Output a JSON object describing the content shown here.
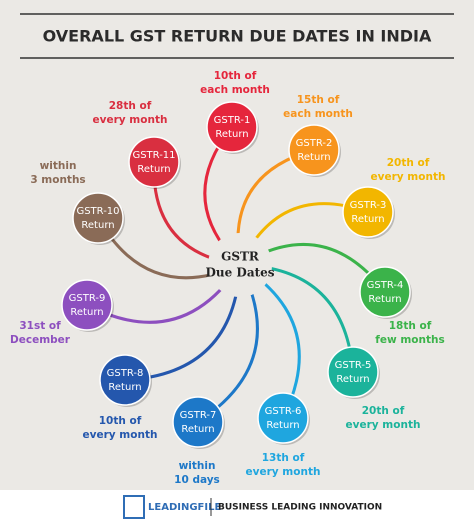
{
  "header": {
    "title": "OVERALL GST RETURN DUE DATES IN INDIA"
  },
  "center": {
    "lines": [
      "GSTR",
      "Due Dates"
    ]
  },
  "nodes": [
    {
      "label": "GSTR-1",
      "sub": "Return",
      "due": [
        "10th of",
        "each month"
      ]
    },
    {
      "label": "GSTR-2",
      "sub": "Return",
      "due": [
        "15th of",
        "each month"
      ]
    },
    {
      "label": "GSTR-3",
      "sub": "Return",
      "due": [
        "20th of",
        "every month"
      ]
    },
    {
      "label": "GSTR-4",
      "sub": "Return",
      "due": [
        "18th of",
        "few months"
      ]
    },
    {
      "label": "GSTR-5",
      "sub": "Return",
      "due": [
        "20th of",
        "every month"
      ]
    },
    {
      "label": "GSTR-6",
      "sub": "Return",
      "due": [
        "13th of",
        "every month"
      ]
    },
    {
      "label": "GSTR-7",
      "sub": "Return",
      "due": [
        "within",
        "10 days"
      ]
    },
    {
      "label": "GSTR-8",
      "sub": "Return",
      "due": [
        "10th of",
        "every month"
      ]
    },
    {
      "label": "GSTR-9",
      "sub": "Return",
      "due": [
        "31st of",
        "December"
      ]
    },
    {
      "label": "GSTR-10",
      "sub": "Return",
      "due": [
        "within",
        "3 months"
      ]
    },
    {
      "label": "GSTR-11",
      "sub": "Return",
      "due": [
        "28th of",
        "every month"
      ]
    }
  ],
  "footer": {
    "brand": "LEADINGFILE",
    "tagline": "BUSINESS LEADING INNOVATION"
  }
}
